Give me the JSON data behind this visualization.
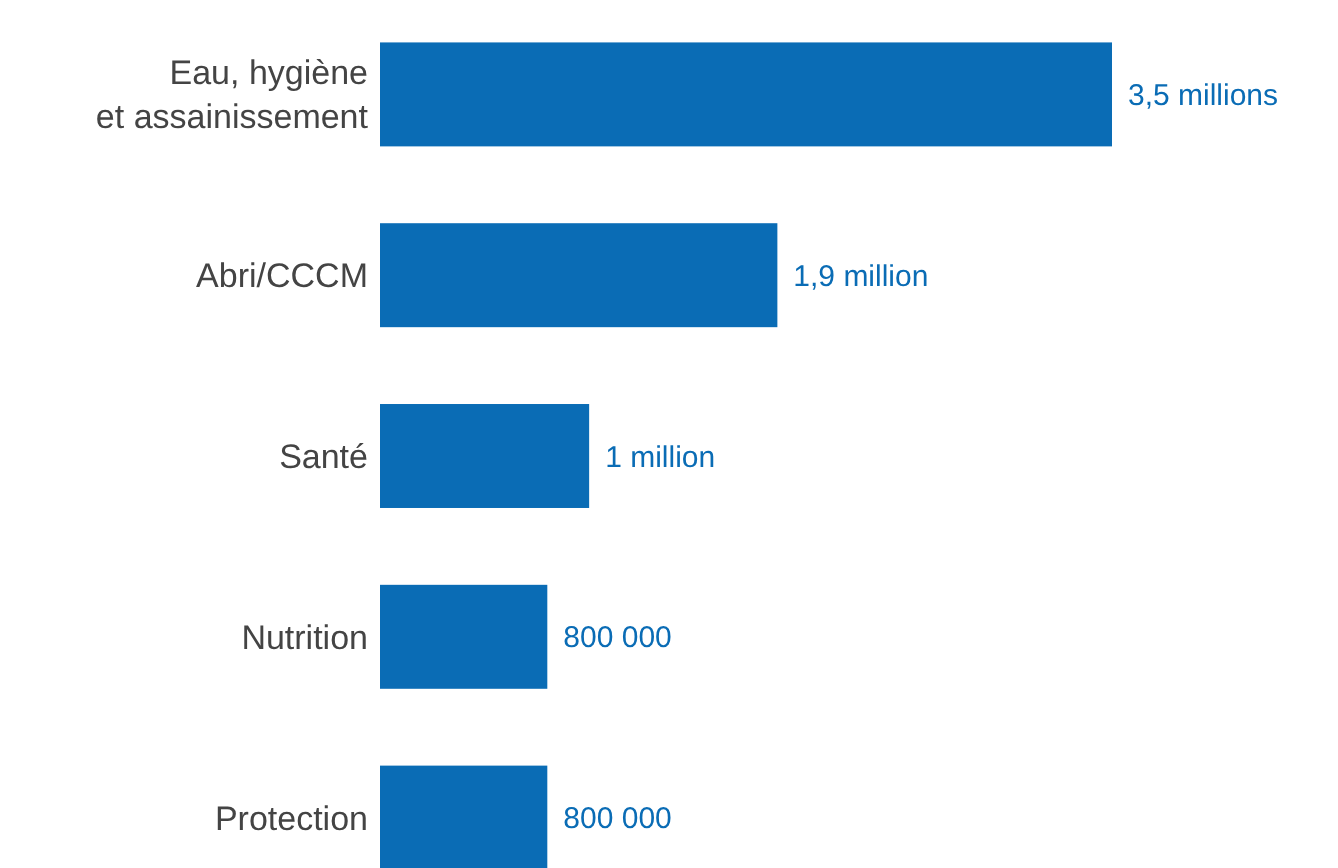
{
  "chart_data": {
    "type": "bar",
    "orientation": "horizontal",
    "categories": [
      "Eau, hygiène\net assainissement",
      "Abri/CCCM",
      "Santé",
      "Nutrition",
      "Protection"
    ],
    "values": [
      3500000,
      1900000,
      1000000,
      800000,
      800000
    ],
    "value_labels": [
      "3,5 millions",
      "1,9 million",
      "1 million",
      "800 000",
      "800 000"
    ],
    "color": "#0a6cb5"
  }
}
